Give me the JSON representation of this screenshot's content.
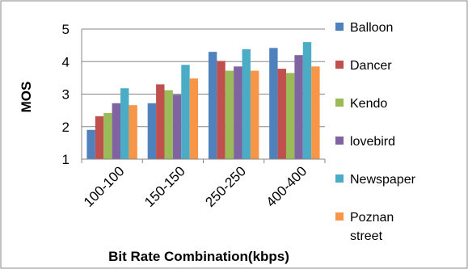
{
  "chart_data": {
    "type": "bar",
    "title": "",
    "xlabel": "Bit Rate Combination(kbps)",
    "ylabel": "MOS",
    "ylim": [
      1,
      5
    ],
    "yticks": [
      "1",
      "2",
      "3",
      "4",
      "5"
    ],
    "grid": "horizontal",
    "legend_position": "right",
    "categories": [
      "100-100",
      "150-150",
      "250-250",
      "400-400"
    ],
    "series": [
      {
        "name": "Balloon",
        "color": "#4F81BD",
        "values": [
          1.9,
          2.72,
          4.3,
          4.42
        ]
      },
      {
        "name": "Dancer",
        "color": "#C0504D",
        "values": [
          2.32,
          3.3,
          4.02,
          3.78
        ]
      },
      {
        "name": "Kendo",
        "color": "#9BBB59",
        "values": [
          2.42,
          3.12,
          3.72,
          3.65
        ]
      },
      {
        "name": "lovebird",
        "color": "#8064A2",
        "values": [
          2.72,
          2.98,
          3.85,
          4.2
        ]
      },
      {
        "name": "Newspaper",
        "color": "#4BACC6",
        "values": [
          3.18,
          3.9,
          4.38,
          4.6
        ]
      },
      {
        "name": "Poznan\nstreet",
        "color": "#F79646",
        "values": [
          2.66,
          3.48,
          3.72,
          3.85
        ]
      }
    ]
  }
}
